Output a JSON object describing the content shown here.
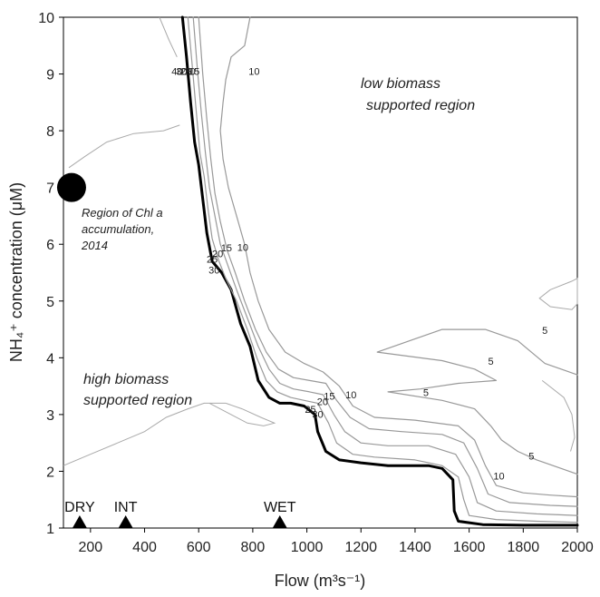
{
  "chart_data": {
    "type": "contour",
    "xlabel": "Flow (m³s⁻¹)",
    "ylabel": "NH₄⁺ concentration (μM)",
    "xlim": [
      100,
      2000
    ],
    "ylim": [
      1,
      10
    ],
    "x_ticks": [
      "200",
      "400",
      "600",
      "800",
      "1000",
      "1200",
      "1400",
      "1600",
      "1800",
      "2000"
    ],
    "y_ticks": [
      "1",
      "2",
      "3",
      "4",
      "5",
      "6",
      "7",
      "8",
      "9",
      "10"
    ],
    "grid": false,
    "contours": [
      {
        "level": 30,
        "emphasis": true,
        "color": "#000000",
        "points": [
          [
            540,
            10
          ],
          [
            555,
            9.3
          ],
          [
            570,
            8.5
          ],
          [
            585,
            7.8
          ],
          [
            600,
            7.4
          ],
          [
            615,
            6.8
          ],
          [
            630,
            6.2
          ],
          [
            650,
            5.7
          ],
          [
            685,
            5.5
          ],
          [
            720,
            5.2
          ],
          [
            755,
            4.6
          ],
          [
            790,
            4.2
          ],
          [
            820,
            3.6
          ],
          [
            860,
            3.3
          ],
          [
            900,
            3.2
          ],
          [
            940,
            3.2
          ],
          [
            990,
            3.15
          ],
          [
            1030,
            3.0
          ],
          [
            1040,
            2.7
          ],
          [
            1070,
            2.35
          ],
          [
            1120,
            2.2
          ],
          [
            1200,
            2.15
          ],
          [
            1300,
            2.1
          ],
          [
            1450,
            2.1
          ],
          [
            1500,
            2.05
          ],
          [
            1540,
            1.85
          ],
          [
            1545,
            1.3
          ],
          [
            1560,
            1.12
          ],
          [
            1650,
            1.06
          ],
          [
            1800,
            1.05
          ],
          [
            2000,
            1.05
          ]
        ]
      },
      {
        "level": 25,
        "emphasis": false,
        "color": "#999999",
        "points": [
          [
            560,
            10
          ],
          [
            575,
            9.2
          ],
          [
            590,
            8.4
          ],
          [
            605,
            7.6
          ],
          [
            620,
            7.2
          ],
          [
            635,
            6.6
          ],
          [
            650,
            6.1
          ],
          [
            675,
            5.7
          ],
          [
            700,
            5.4
          ],
          [
            740,
            5.0
          ],
          [
            780,
            4.5
          ],
          [
            815,
            4.0
          ],
          [
            850,
            3.6
          ],
          [
            890,
            3.4
          ],
          [
            940,
            3.3
          ],
          [
            990,
            3.25
          ],
          [
            1040,
            3.2
          ],
          [
            1080,
            2.85
          ],
          [
            1110,
            2.5
          ],
          [
            1170,
            2.3
          ],
          [
            1250,
            2.25
          ],
          [
            1400,
            2.2
          ],
          [
            1500,
            2.1
          ],
          [
            1560,
            1.9
          ],
          [
            1580,
            1.5
          ],
          [
            1600,
            1.22
          ],
          [
            1700,
            1.15
          ],
          [
            1850,
            1.12
          ],
          [
            2000,
            1.1
          ]
        ]
      },
      {
        "level": 20,
        "emphasis": false,
        "color": "#999999",
        "points": [
          [
            580,
            10
          ],
          [
            595,
            9.1
          ],
          [
            610,
            8.3
          ],
          [
            625,
            7.6
          ],
          [
            640,
            7.0
          ],
          [
            660,
            6.5
          ],
          [
            680,
            6.0
          ],
          [
            710,
            5.6
          ],
          [
            740,
            5.2
          ],
          [
            780,
            4.7
          ],
          [
            820,
            4.2
          ],
          [
            860,
            3.8
          ],
          [
            900,
            3.55
          ],
          [
            950,
            3.45
          ],
          [
            1010,
            3.4
          ],
          [
            1060,
            3.35
          ],
          [
            1100,
            3.0
          ],
          [
            1140,
            2.7
          ],
          [
            1200,
            2.5
          ],
          [
            1300,
            2.45
          ],
          [
            1450,
            2.45
          ],
          [
            1550,
            2.3
          ],
          [
            1600,
            1.9
          ],
          [
            1630,
            1.45
          ],
          [
            1700,
            1.3
          ],
          [
            1850,
            1.25
          ],
          [
            2000,
            1.22
          ]
        ]
      },
      {
        "level": 15,
        "emphasis": false,
        "color": "#999999",
        "points": [
          [
            600,
            10
          ],
          [
            615,
            9.0
          ],
          [
            630,
            8.2
          ],
          [
            645,
            7.5
          ],
          [
            660,
            6.9
          ],
          [
            680,
            6.4
          ],
          [
            705,
            5.9
          ],
          [
            735,
            5.5
          ],
          [
            770,
            5.0
          ],
          [
            810,
            4.5
          ],
          [
            850,
            4.1
          ],
          [
            895,
            3.8
          ],
          [
            950,
            3.65
          ],
          [
            1010,
            3.6
          ],
          [
            1070,
            3.55
          ],
          [
            1110,
            3.25
          ],
          [
            1160,
            2.95
          ],
          [
            1230,
            2.75
          ],
          [
            1350,
            2.7
          ],
          [
            1500,
            2.65
          ],
          [
            1580,
            2.5
          ],
          [
            1630,
            2.05
          ],
          [
            1670,
            1.6
          ],
          [
            1750,
            1.45
          ],
          [
            1900,
            1.4
          ],
          [
            2000,
            1.38
          ]
        ]
      },
      {
        "level": 10,
        "emphasis": false,
        "color": "#999999",
        "points": [
          [
            790,
            10
          ],
          [
            770,
            9.5
          ],
          [
            720,
            9.3
          ],
          [
            700,
            8.9
          ],
          [
            690,
            8.5
          ],
          [
            680,
            8.0
          ],
          [
            690,
            7.5
          ],
          [
            710,
            7.0
          ],
          [
            740,
            6.5
          ],
          [
            770,
            6.0
          ],
          [
            790,
            5.5
          ],
          [
            820,
            5.0
          ],
          [
            860,
            4.5
          ],
          [
            920,
            4.1
          ],
          [
            990,
            3.9
          ],
          [
            1060,
            3.75
          ],
          [
            1120,
            3.5
          ],
          [
            1170,
            3.15
          ],
          [
            1250,
            2.95
          ],
          [
            1400,
            2.9
          ],
          [
            1560,
            2.8
          ],
          [
            1620,
            2.55
          ],
          [
            1660,
            2.1
          ],
          [
            1700,
            1.75
          ],
          [
            1800,
            1.62
          ],
          [
            1900,
            1.58
          ],
          [
            2000,
            1.55
          ]
        ]
      },
      {
        "level": 5,
        "emphasis": false,
        "color": "#999999",
        "points": [
          [
            2000,
            3.7
          ],
          [
            1880,
            3.9
          ],
          [
            1780,
            4.3
          ],
          [
            1660,
            4.5
          ],
          [
            1500,
            4.5
          ],
          [
            1380,
            4.3
          ],
          [
            1260,
            4.1
          ],
          [
            1500,
            3.95
          ],
          [
            1620,
            3.8
          ],
          [
            1700,
            3.6
          ],
          [
            1560,
            3.55
          ],
          [
            1420,
            3.45
          ],
          [
            1300,
            3.4
          ],
          [
            1500,
            3.25
          ],
          [
            1620,
            3.1
          ],
          [
            1680,
            2.8
          ],
          [
            1720,
            2.55
          ],
          [
            1780,
            2.35
          ],
          [
            1850,
            2.2
          ],
          [
            1940,
            2.05
          ],
          [
            2000,
            1.95
          ]
        ]
      }
    ],
    "contour_labels": [
      {
        "text": "40",
        "x": 520,
        "y": 9.03
      },
      {
        "text": "30",
        "x": 537,
        "y": 9.03
      },
      {
        "text": "25",
        "x": 553,
        "y": 9.03
      },
      {
        "text": "20",
        "x": 568,
        "y": 9.03
      },
      {
        "text": "15",
        "x": 583,
        "y": 9.03
      },
      {
        "text": "10",
        "x": 805,
        "y": 9.03
      },
      {
        "text": "25",
        "x": 650,
        "y": 5.72
      },
      {
        "text": "30",
        "x": 657,
        "y": 5.53
      },
      {
        "text": "20",
        "x": 670,
        "y": 5.82
      },
      {
        "text": "15",
        "x": 703,
        "y": 5.92
      },
      {
        "text": "10",
        "x": 763,
        "y": 5.93
      },
      {
        "text": "25",
        "x": 1013,
        "y": 3.08
      },
      {
        "text": "30",
        "x": 1040,
        "y": 2.99
      },
      {
        "text": "20",
        "x": 1058,
        "y": 3.21
      },
      {
        "text": "15",
        "x": 1083,
        "y": 3.31
      },
      {
        "text": "10",
        "x": 1163,
        "y": 3.33
      },
      {
        "text": "5",
        "x": 1880,
        "y": 4.47
      },
      {
        "text": "5",
        "x": 1680,
        "y": 3.92
      },
      {
        "text": "5",
        "x": 1440,
        "y": 3.37
      },
      {
        "text": "5",
        "x": 1830,
        "y": 2.25
      },
      {
        "text": "10",
        "x": 1710,
        "y": 1.9
      }
    ],
    "thin_contours": [
      {
        "color": "#aaaaaa",
        "points": [
          [
            120,
            7.35
          ],
          [
            180,
            7.55
          ],
          [
            260,
            7.8
          ],
          [
            360,
            7.95
          ],
          [
            470,
            8.0
          ],
          [
            530,
            8.1
          ]
        ]
      },
      {
        "color": "#aaaaaa",
        "points": [
          [
            100,
            2.1
          ],
          [
            200,
            2.3
          ],
          [
            300,
            2.5
          ],
          [
            400,
            2.7
          ],
          [
            480,
            2.95
          ],
          [
            560,
            3.1
          ],
          [
            620,
            3.2
          ],
          [
            700,
            3.2
          ]
        ]
      },
      {
        "color": "#aaaaaa",
        "points": [
          [
            640,
            3.2
          ],
          [
            720,
            3.0
          ],
          [
            780,
            2.85
          ],
          [
            840,
            2.8
          ],
          [
            880,
            2.85
          ],
          [
            830,
            2.95
          ],
          [
            760,
            3.1
          ],
          [
            700,
            3.2
          ]
        ]
      },
      {
        "color": "#aaaaaa",
        "points": [
          [
            455,
            10
          ],
          [
            490,
            9.6
          ],
          [
            520,
            9.3
          ]
        ]
      },
      {
        "color": "#aaaaaa",
        "points": [
          [
            1900,
            5.2
          ],
          [
            1980,
            5.35
          ],
          [
            2000,
            5.4
          ],
          [
            2000,
            4.95
          ],
          [
            1980,
            4.85
          ],
          [
            1900,
            4.9
          ],
          [
            1860,
            5.05
          ],
          [
            1900,
            5.2
          ]
        ]
      },
      {
        "color": "#aaaaaa",
        "points": [
          [
            1870,
            3.6
          ],
          [
            1950,
            3.3
          ],
          [
            1980,
            3.0
          ],
          [
            1990,
            2.6
          ],
          [
            1975,
            2.35
          ]
        ]
      }
    ],
    "marker": {
      "x": 130,
      "y": 7.0
    },
    "annotations": {
      "region_chl_line1": "Region of Chl a",
      "region_chl_line2": "accumulation,",
      "region_chl_line3": "2014",
      "low_line1": "low biomass",
      "low_line2": "supported region",
      "high_line1": "high biomass",
      "high_line2": "supported region"
    },
    "conditions": [
      {
        "label": "DRY",
        "x": 160
      },
      {
        "label": "INT",
        "x": 330
      },
      {
        "label": "WET",
        "x": 900
      }
    ]
  }
}
